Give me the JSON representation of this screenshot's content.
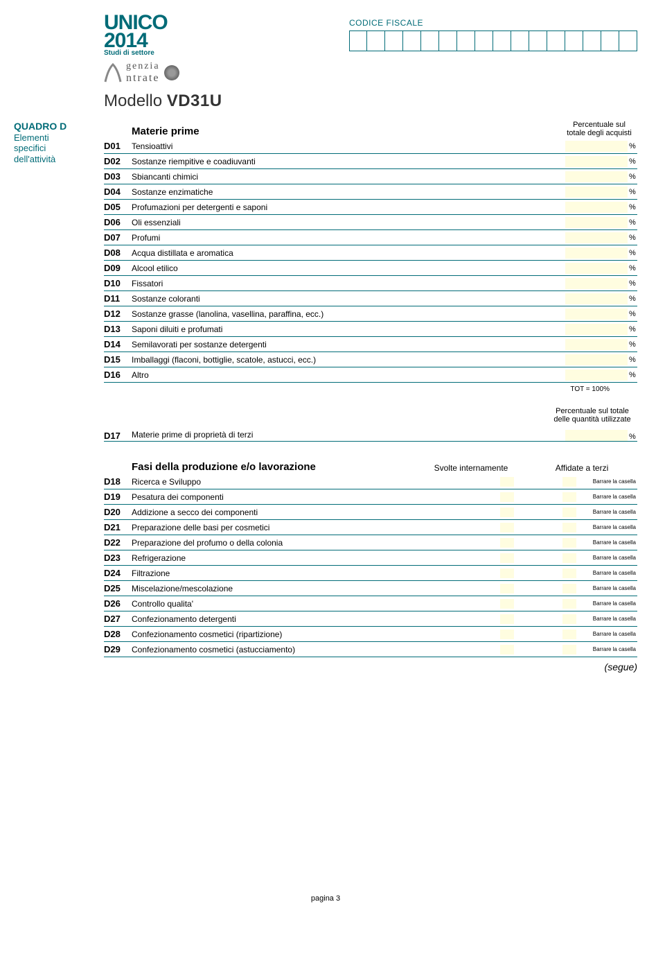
{
  "brand": {
    "unico": "UNICO",
    "year": "2014",
    "studi": "Studi di settore",
    "agenzia1": "genzia",
    "agenzia2": "ntrate"
  },
  "cf": {
    "label": "CODICE FISCALE",
    "cells": 16
  },
  "modello_prefix": "Modello ",
  "modello_code": "VD31U",
  "sidebar": {
    "title": "QUADRO D",
    "sub1": "Elementi",
    "sub2": "specifici",
    "sub3": "dell'attività"
  },
  "section1": {
    "title": "Materie prime",
    "pct_header": "Percentuale sul\ntotale degli acquisti",
    "rows": [
      {
        "code": "D01",
        "label": "Tensioattivi"
      },
      {
        "code": "D02",
        "label": "Sostanze riempitive e coadiuvanti"
      },
      {
        "code": "D03",
        "label": "Sbiancanti chimici"
      },
      {
        "code": "D04",
        "label": "Sostanze enzimatiche"
      },
      {
        "code": "D05",
        "label": "Profumazioni per detergenti e saponi"
      },
      {
        "code": "D06",
        "label": "Oli essenziali"
      },
      {
        "code": "D07",
        "label": "Profumi"
      },
      {
        "code": "D08",
        "label": "Acqua distillata e aromatica"
      },
      {
        "code": "D09",
        "label": "Alcool etilico"
      },
      {
        "code": "D10",
        "label": "Fissatori"
      },
      {
        "code": "D11",
        "label": "Sostanze coloranti"
      },
      {
        "code": "D12",
        "label": "Sostanze grasse (lanolina, vasellina, paraffina, ecc.)"
      },
      {
        "code": "D13",
        "label": "Saponi diluiti e profumati"
      },
      {
        "code": "D14",
        "label": "Semilavorati per sostanze detergenti"
      },
      {
        "code": "D15",
        "label": "Imballaggi (flaconi, bottiglie, scatole, astucci, ecc.)"
      },
      {
        "code": "D16",
        "label": "Altro"
      }
    ],
    "tot": "TOT = 100%",
    "pct_symbol": "%"
  },
  "row17": {
    "header": "Percentuale sul totale\ndelle quantità utilizzate",
    "code": "D17",
    "label": "Materie prime di proprietà di terzi",
    "pct_symbol": "%"
  },
  "section2": {
    "title": "Fasi della produzione e/o lavorazione",
    "col1": "Svolte internamente",
    "col2": "Affidate a terzi",
    "note": "Barrare la casella",
    "rows": [
      {
        "code": "D18",
        "label": "Ricerca e Sviluppo"
      },
      {
        "code": "D19",
        "label": "Pesatura dei componenti"
      },
      {
        "code": "D20",
        "label": "Addizione a secco dei componenti"
      },
      {
        "code": "D21",
        "label": "Preparazione delle basi per cosmetici"
      },
      {
        "code": "D22",
        "label": "Preparazione del profumo o della colonia"
      },
      {
        "code": "D23",
        "label": "Refrigerazione"
      },
      {
        "code": "D24",
        "label": "Filtrazione"
      },
      {
        "code": "D25",
        "label": "Miscelazione/mescolazione"
      },
      {
        "code": "D26",
        "label": "Controllo qualita'"
      },
      {
        "code": "D27",
        "label": "Confezionamento detergenti"
      },
      {
        "code": "D28",
        "label": "Confezionamento cosmetici (ripartizione)"
      },
      {
        "code": "D29",
        "label": "Confezionamento cosmetici (astucciamento)"
      }
    ],
    "segue": "(segue)"
  },
  "footer": "pagina 3",
  "colors": {
    "teal": "#006b77",
    "field": "#fffde0"
  }
}
